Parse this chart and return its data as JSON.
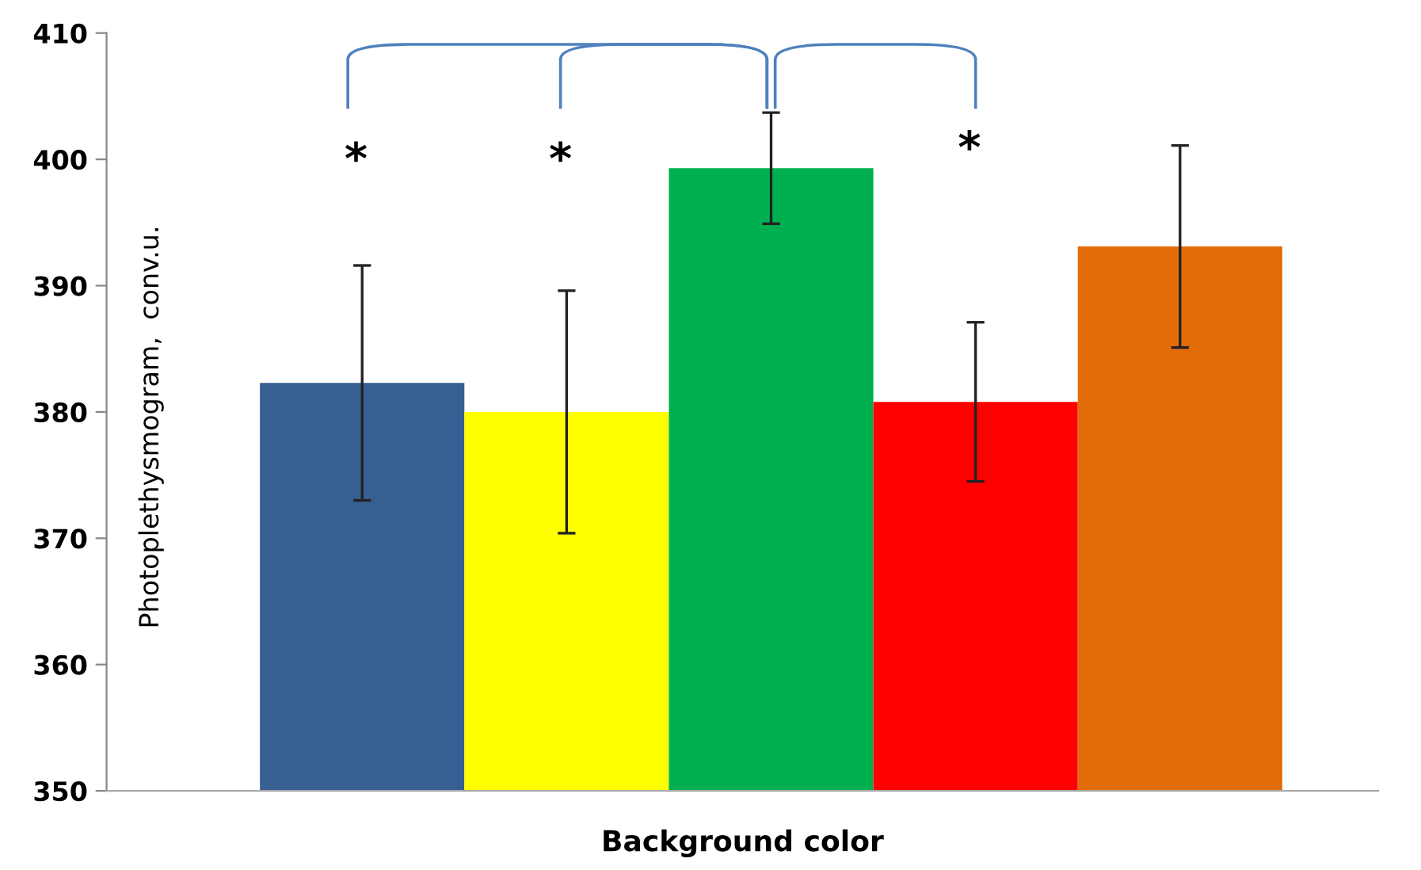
{
  "chart_data": {
    "type": "bar",
    "xlabel": "Background color",
    "ylabel": "Photoplethysmogram,  conv.u.",
    "categories": [
      null,
      null,
      null,
      null,
      null
    ],
    "values": [
      382.3,
      380.0,
      399.3,
      380.8,
      393.1
    ],
    "colors": [
      "#376092",
      "#ffff00",
      "#00b050",
      "#ff0000",
      "#e36c0a"
    ],
    "errors": [
      9.3,
      9.6,
      4.4,
      6.3,
      8.0
    ],
    "ylim": [
      350,
      410
    ],
    "yticks": [
      350,
      360,
      370,
      380,
      390,
      400,
      410
    ],
    "annotations": [
      "*",
      "*",
      "*"
    ],
    "grid": false,
    "legend": false
  }
}
